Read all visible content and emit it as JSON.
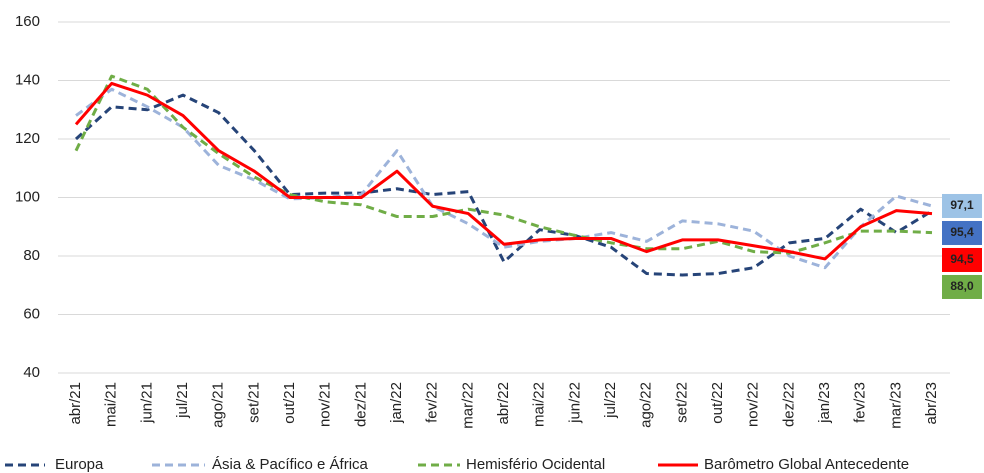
{
  "chart_data": {
    "type": "line",
    "categories": [
      "abr/21",
      "mai/21",
      "jun/21",
      "jul/21",
      "ago/21",
      "set/21",
      "out/21",
      "nov/21",
      "dez/21",
      "jan/22",
      "fev/22",
      "mar/22",
      "abr/22",
      "mai/22",
      "jun/22",
      "jul/22",
      "ago/22",
      "set/22",
      "out/22",
      "nov/22",
      "dez/22",
      "jan/23",
      "fev/23",
      "mar/23",
      "abr/23"
    ],
    "series": [
      {
        "name": "Europa",
        "color": "#264478",
        "dash": "8,5",
        "label_color": "#4472c4",
        "values": [
          120,
          131,
          130,
          135,
          129,
          116,
          101,
          101.5,
          101.5,
          103,
          101,
          102,
          78,
          89,
          87,
          83,
          74,
          73.5,
          74,
          76,
          84.5,
          86,
          96,
          88,
          95.4
        ],
        "value_labels": [
          null,
          null,
          null,
          null,
          null,
          null,
          null,
          null,
          null,
          null,
          null,
          null,
          null,
          null,
          null,
          null,
          null,
          null,
          null,
          null,
          null,
          null,
          null,
          null,
          "95,4"
        ]
      },
      {
        "name": "Ásia & Pacífico e África",
        "color": "#9db3da",
        "dash": "8,5",
        "label_color": "#9dc3e6",
        "values": [
          128,
          137,
          131,
          124,
          111,
          106,
          99.5,
          100,
          101,
          116,
          97,
          91,
          83,
          85,
          86,
          88,
          85,
          92,
          91,
          88.5,
          80,
          76,
          90,
          100.5,
          97.1
        ],
        "value_labels": [
          null,
          null,
          null,
          null,
          null,
          null,
          null,
          null,
          null,
          null,
          null,
          null,
          null,
          null,
          null,
          null,
          null,
          null,
          null,
          null,
          null,
          null,
          null,
          null,
          "97,1"
        ]
      },
      {
        "name": "Hemisfério Ocidental",
        "color": "#70ad47",
        "dash": "8,5",
        "label_color": "#70ad47",
        "values": [
          116,
          141.5,
          137,
          124,
          115,
          107,
          101,
          98.5,
          97.5,
          93.5,
          93.5,
          96,
          94,
          90,
          87,
          84.5,
          82.5,
          82.5,
          85,
          81.5,
          81,
          84.5,
          88.5,
          88.5,
          88.0
        ],
        "value_labels": [
          null,
          null,
          null,
          null,
          null,
          null,
          null,
          null,
          null,
          null,
          null,
          null,
          null,
          null,
          null,
          null,
          null,
          null,
          null,
          null,
          null,
          null,
          null,
          null,
          "88,0"
        ]
      },
      {
        "name": "Barômetro Global Antecedente",
        "color": "#ff0000",
        "dash": "none",
        "label_color": "#ff0000",
        "values": [
          125,
          139,
          135,
          128,
          116,
          109,
          100,
          100,
          100,
          109,
          97,
          94.5,
          84,
          85.5,
          86,
          86,
          81.5,
          85.5,
          85.5,
          83.5,
          81.5,
          79,
          90,
          95.5,
          94.5
        ],
        "value_labels": [
          null,
          null,
          null,
          null,
          null,
          null,
          null,
          null,
          null,
          null,
          null,
          null,
          null,
          null,
          null,
          null,
          null,
          null,
          null,
          null,
          null,
          null,
          null,
          null,
          "94,5"
        ]
      }
    ],
    "ylim": [
      40,
      160
    ],
    "yticks": [
      40,
      60,
      80,
      100,
      120,
      140,
      160
    ],
    "grid": true,
    "legend": "bottom"
  }
}
